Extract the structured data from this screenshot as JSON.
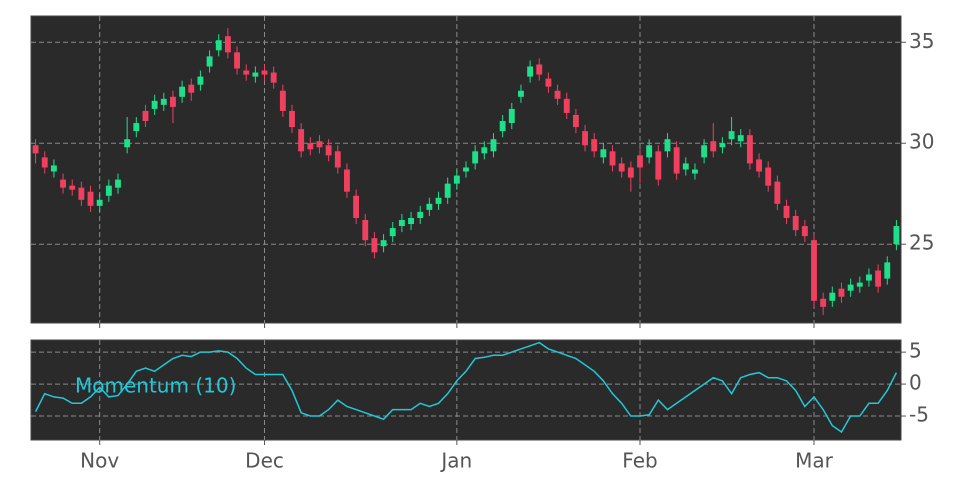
{
  "chart_data": [
    {
      "type": "candlestick",
      "up_color": "#1fe08a",
      "down_color": "#f04060",
      "grid": true,
      "ylim": [
        21.1,
        36.3
      ],
      "yticks": [
        25,
        30,
        35
      ],
      "open": [
        29.9,
        29.3,
        28.6,
        28.2,
        27.9,
        27.8,
        27.6,
        26.9,
        27.4,
        27.8,
        29.8,
        30.6,
        31.6,
        31.7,
        31.9,
        32.3,
        32.3,
        32.9,
        32.9,
        33.8,
        34.6,
        35.3,
        34.5,
        33.6,
        33.3,
        33.6,
        33.5,
        32.6,
        31.6,
        30.7,
        30.0,
        30.1,
        29.9,
        29.6,
        28.7,
        27.4,
        26.2,
        25.3,
        24.9,
        25.4,
        25.9,
        26.0,
        26.3,
        26.7,
        27.0,
        27.3,
        28.0,
        28.6,
        29.0,
        29.5,
        29.6,
        30.6,
        31.0,
        32.3,
        33.3,
        33.9,
        33.2,
        32.6,
        32.2,
        31.4,
        30.6,
        30.2,
        29.3,
        29.6,
        29.0,
        28.8,
        29.4,
        29.3,
        29.6,
        29.6,
        29.8,
        28.7,
        28.5,
        29.3,
        30.1,
        29.8,
        30.2,
        30.1,
        30.4,
        29.2,
        28.8,
        28.1,
        26.9,
        26.4,
        25.9,
        25.2,
        22.3,
        22.2,
        22.8,
        22.7,
        22.9,
        23.2,
        23.7,
        23.3,
        25.0
      ],
      "high": [
        30.2,
        29.6,
        29.2,
        28.5,
        28.2,
        28.1,
        27.9,
        27.5,
        28.2,
        28.5,
        31.3,
        31.3,
        31.9,
        32.4,
        32.5,
        32.6,
        33.1,
        33.2,
        33.6,
        34.6,
        35.4,
        35.7,
        34.8,
        33.9,
        33.8,
        33.9,
        33.8,
        32.9,
        31.9,
        31.0,
        30.3,
        30.4,
        30.2,
        29.9,
        29.0,
        27.7,
        26.5,
        25.6,
        25.5,
        26.1,
        26.5,
        26.6,
        26.9,
        27.3,
        27.6,
        28.3,
        28.7,
        29.1,
        29.9,
        30.1,
        30.5,
        31.4,
        32.0,
        32.9,
        34.1,
        34.2,
        33.5,
        32.9,
        32.5,
        31.7,
        30.9,
        30.5,
        30.0,
        29.9,
        29.3,
        29.1,
        29.7,
        30.2,
        29.9,
        30.5,
        30.1,
        29.3,
        29.0,
        30.2,
        31.0,
        30.3,
        31.3,
        30.7,
        30.7,
        29.5,
        29.1,
        28.4,
        27.2,
        26.7,
        26.2,
        25.5,
        22.6,
        22.9,
        23.1,
        23.3,
        23.4,
        23.8,
        24.0,
        24.4,
        26.2
      ],
      "low": [
        29.0,
        28.5,
        28.3,
        27.5,
        27.4,
        26.9,
        26.6,
        26.6,
        27.1,
        27.5,
        29.5,
        30.3,
        30.8,
        31.4,
        31.6,
        31.0,
        32.0,
        32.1,
        32.6,
        33.5,
        34.3,
        34.2,
        33.4,
        33.1,
        33.0,
        33.1,
        32.7,
        31.3,
        30.5,
        29.3,
        29.4,
        29.5,
        29.1,
        28.5,
        27.3,
        26.0,
        24.9,
        24.3,
        24.6,
        25.1,
        25.6,
        25.7,
        26.0,
        26.4,
        26.7,
        27.0,
        27.7,
        28.3,
        28.7,
        29.2,
        29.3,
        30.3,
        30.7,
        32.0,
        33.0,
        33.1,
        32.5,
        31.9,
        31.2,
        30.5,
        29.6,
        29.3,
        29.0,
        28.6,
        28.3,
        27.6,
        28.0,
        29.0,
        27.9,
        29.3,
        28.2,
        28.4,
        28.2,
        29.0,
        29.3,
        29.5,
        29.9,
        29.8,
        28.7,
        28.3,
        27.6,
        26.7,
        26.0,
        25.4,
        25.1,
        21.9,
        21.5,
        21.9,
        22.1,
        22.4,
        22.6,
        22.9,
        22.6,
        23.0,
        24.7
      ],
      "close": [
        29.5,
        28.8,
        28.9,
        27.8,
        27.7,
        27.2,
        26.9,
        27.2,
        27.9,
        28.2,
        30.2,
        31.0,
        31.1,
        32.1,
        32.2,
        31.8,
        32.8,
        32.5,
        33.3,
        34.3,
        35.1,
        34.5,
        33.7,
        33.4,
        33.5,
        33.4,
        33.0,
        31.6,
        30.8,
        29.6,
        29.7,
        29.8,
        29.4,
        28.8,
        27.6,
        26.3,
        25.2,
        24.6,
        25.2,
        25.8,
        26.2,
        26.3,
        26.6,
        27.0,
        27.3,
        28.0,
        28.4,
        28.8,
        29.6,
        29.8,
        30.2,
        31.1,
        31.7,
        32.6,
        33.8,
        33.4,
        32.8,
        32.2,
        31.5,
        30.8,
        29.9,
        29.6,
        29.7,
        28.9,
        28.6,
        28.3,
        28.8,
        29.9,
        28.2,
        30.2,
        28.5,
        29.0,
        28.7,
        29.9,
        29.6,
        30.0,
        30.6,
        30.4,
        29.0,
        28.6,
        27.9,
        27.0,
        26.3,
        25.7,
        25.4,
        22.2,
        21.9,
        22.6,
        22.4,
        23.0,
        23.1,
        23.5,
        22.9,
        24.1,
        25.9
      ]
    },
    {
      "type": "line",
      "grid": true,
      "ylim": [
        -8.75,
        6.9
      ],
      "yticks": [
        -5,
        0,
        5
      ],
      "categories": [
        null,
        null,
        null,
        null,
        null,
        null,
        null,
        "Nov",
        null,
        null,
        null,
        null,
        null,
        null,
        null,
        null,
        null,
        null,
        null,
        null,
        null,
        null,
        null,
        null,
        null,
        "Dec",
        null,
        null,
        null,
        null,
        null,
        null,
        null,
        null,
        null,
        null,
        null,
        null,
        null,
        null,
        null,
        null,
        null,
        null,
        null,
        null,
        "Jan",
        null,
        null,
        null,
        null,
        null,
        null,
        null,
        null,
        null,
        null,
        null,
        null,
        null,
        null,
        null,
        null,
        null,
        null,
        null,
        "Feb",
        null,
        null,
        null,
        null,
        null,
        null,
        null,
        null,
        null,
        null,
        null,
        null,
        null,
        null,
        null,
        null,
        null,
        null,
        "Mar",
        null,
        null,
        null,
        null,
        null,
        null,
        null,
        null,
        null
      ],
      "series": [
        {
          "name": "Momentum (10)",
          "color": "#22c8d8",
          "values": [
            -4.3,
            -1.5,
            -2,
            -2.2,
            -3,
            -3,
            -2,
            -0.5,
            -2,
            -1.8,
            0,
            2,
            2.5,
            2,
            3,
            4,
            4.5,
            4.3,
            5,
            5,
            5.2,
            5,
            4,
            2.5,
            1.5,
            1.5,
            1.5,
            1.5,
            -1,
            -4.5,
            -5,
            -5,
            -4,
            -2.5,
            -3.5,
            -4,
            -4.5,
            -5,
            -5.5,
            -4,
            -4,
            -4,
            -3,
            -3.5,
            -3,
            -1.5,
            0.5,
            2,
            4,
            4.2,
            4.5,
            4.5,
            5,
            5.5,
            6,
            6.5,
            5.5,
            5,
            4.5,
            4,
            3,
            2,
            0.5,
            -1.5,
            -3,
            -5,
            -5,
            -4.8,
            -2.5,
            -4,
            -3,
            -2,
            -1,
            0,
            1,
            0.5,
            -1.5,
            1,
            1.5,
            1.8,
            1,
            1,
            0.5,
            -1,
            -3.5,
            -2,
            -4,
            -6.5,
            -7.5,
            -5,
            -5,
            -3,
            -3,
            -1,
            1.8
          ]
        }
      ]
    }
  ]
}
